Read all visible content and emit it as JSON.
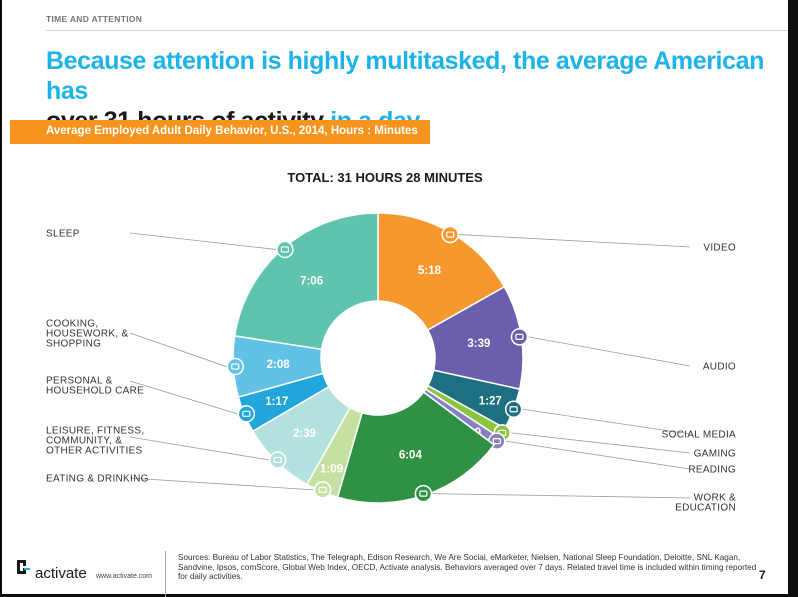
{
  "header": {
    "section": "TIME AND ATTENTION"
  },
  "headline": {
    "part1": "Because attention is highly multitasked, the average American has",
    "part2": "over 31 hours of activity",
    "part3": " in a day"
  },
  "banner": {
    "text": "Average Employed Adult Daily Behavior, U.S., 2014, Hours : Minutes",
    "color": "#f7941d"
  },
  "chart_data": {
    "type": "pie",
    "title": "TOTAL: 31 HOURS 28 MINUTES",
    "donut": true,
    "slices": [
      {
        "name": "VIDEO",
        "value": "5:18",
        "minutes": 318,
        "color": "#f7982e",
        "icon": "tv-icon"
      },
      {
        "name": "AUDIO",
        "value": "3:39",
        "minutes": 219,
        "color": "#6a5fad",
        "icon": "speaker-icon"
      },
      {
        "name": "SOCIAL MEDIA",
        "value": "1:27",
        "minutes": 87,
        "color": "#1e6f82",
        "icon": "share-icon"
      },
      {
        "name": "GAMING",
        "value": "0:22",
        "minutes": 22,
        "color": "#8cc63f",
        "icon": "gamepad-icon"
      },
      {
        "name": "READING",
        "value": "0:19",
        "minutes": 19,
        "color": "#8a7fc4",
        "icon": "book-icon"
      },
      {
        "name": "WORK & EDUCATION",
        "value": "6:04",
        "minutes": 364,
        "color": "#2f9143",
        "icon": "people-icon"
      },
      {
        "name": "EATING & DRINKING",
        "value": "1:09",
        "minutes": 69,
        "color": "#c5e0a0",
        "icon": "fork-icon"
      },
      {
        "name": "LEISURE, FITNESS, COMMUNITY, & OTHER ACTIVITIES",
        "value": "2:39",
        "minutes": 159,
        "color": "#b3e1de",
        "icon": "bike-icon"
      },
      {
        "name": "PERSONAL & HOUSEHOLD CARE",
        "value": "1:17",
        "minutes": 77,
        "color": "#22a5db",
        "icon": "person-icon"
      },
      {
        "name": "COOKING, HOUSEWORK, & SHOPPING",
        "value": "2:08",
        "minutes": 128,
        "color": "#62c2e6",
        "icon": "bag-icon"
      },
      {
        "name": "SLEEP",
        "value": "7:06",
        "minutes": 426,
        "color": "#5ec4ad",
        "icon": "bed-icon"
      }
    ]
  },
  "footer": {
    "logo": "activate",
    "url": "www.activate.com",
    "sources": "Sources: Bureau of Labor Statistics, The Telegraph, Edison Research, We Are Social, eMarketer, Nielsen, National Sleep Foundation, Deloitte, SNL Kagan, Sandvine, Ipsos, comScore, Global Web Index, OECD, Activate analysis.  Behaviors averaged over 7 days. Related travel time is included within timing reported for daily activities.",
    "page": "7"
  }
}
